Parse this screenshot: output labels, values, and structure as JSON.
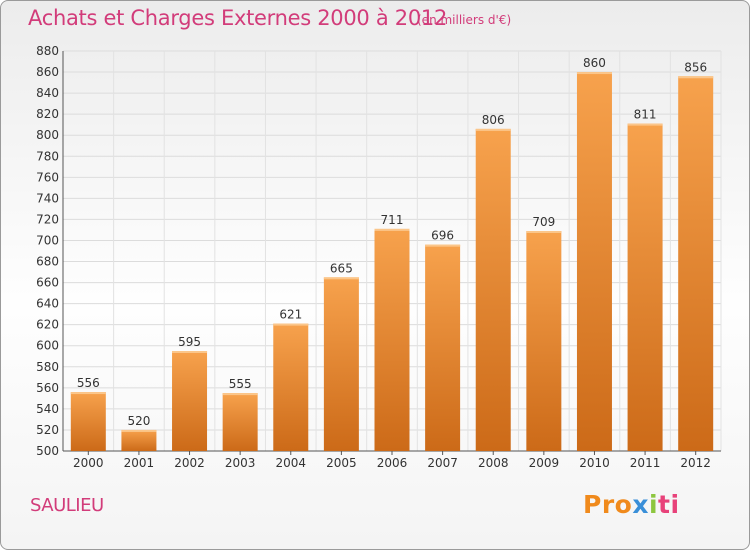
{
  "header": {
    "title": "Achats et Charges Externes 2000 à 2012",
    "unit": "(en milliers d'€)"
  },
  "footer": {
    "city": "SAULIEU",
    "logo_parts": [
      "Pro",
      "x",
      "i",
      "ti"
    ]
  },
  "colors": {
    "accent": "#d23c7a",
    "bar_top": "#f7a24d",
    "bar_bottom": "#cc6a18"
  },
  "chart_data": {
    "type": "bar",
    "categories": [
      "2000",
      "2001",
      "2002",
      "2003",
      "2004",
      "2005",
      "2006",
      "2007",
      "2008",
      "2009",
      "2010",
      "2011",
      "2012"
    ],
    "values": [
      556,
      520,
      595,
      555,
      621,
      665,
      711,
      696,
      806,
      709,
      860,
      811,
      856
    ],
    "ylim": [
      500,
      880
    ],
    "ytick_step": 20,
    "grid": true
  }
}
